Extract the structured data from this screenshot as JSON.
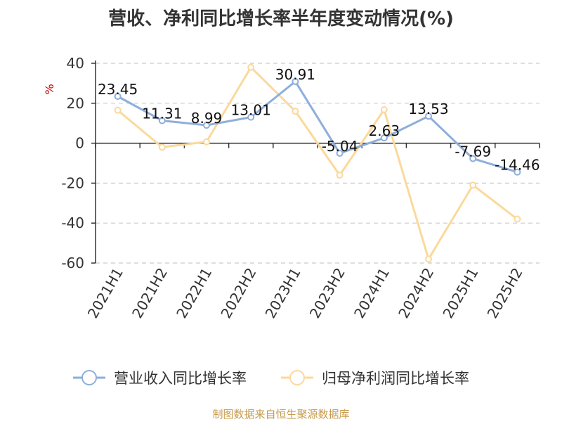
{
  "title": "营收、净利同比增长率半年度变动情况(%)",
  "source": "制图数据来自恒生聚源数据库",
  "chart_data": {
    "type": "line",
    "title": "营收、净利同比增长率半年度变动情况(%)",
    "ylabel": "%",
    "xlabel": "",
    "categories": [
      "2021H1",
      "2021H2",
      "2022H1",
      "2022H2",
      "2023H1",
      "2023H2",
      "2024H1",
      "2024H2",
      "2025H1",
      "2025H2"
    ],
    "ylim": [
      -60,
      40
    ],
    "yticks": [
      "40",
      "20",
      "0",
      "-20",
      "-40",
      "-60"
    ],
    "grid": true,
    "legend_position": "bottom",
    "series": [
      {
        "name": "营业收入同比增长率",
        "color": "#8eaedb",
        "values": [
          23.45,
          11.31,
          8.99,
          13.01,
          30.91,
          -5.04,
          2.63,
          13.53,
          -7.69,
          -14.46
        ],
        "labels": [
          "23.45",
          "11.31",
          "8.99",
          "13.01",
          "30.91",
          "-5.04",
          "2.63",
          "13.53",
          "-7.69",
          "-14.46"
        ]
      },
      {
        "name": "归母净利润同比增长率",
        "color": "#fbd99b",
        "values": [
          16.5,
          -2.0,
          0.7,
          38.0,
          16.0,
          -16.0,
          16.8,
          -58.0,
          -21.0,
          -38.0
        ]
      }
    ]
  }
}
